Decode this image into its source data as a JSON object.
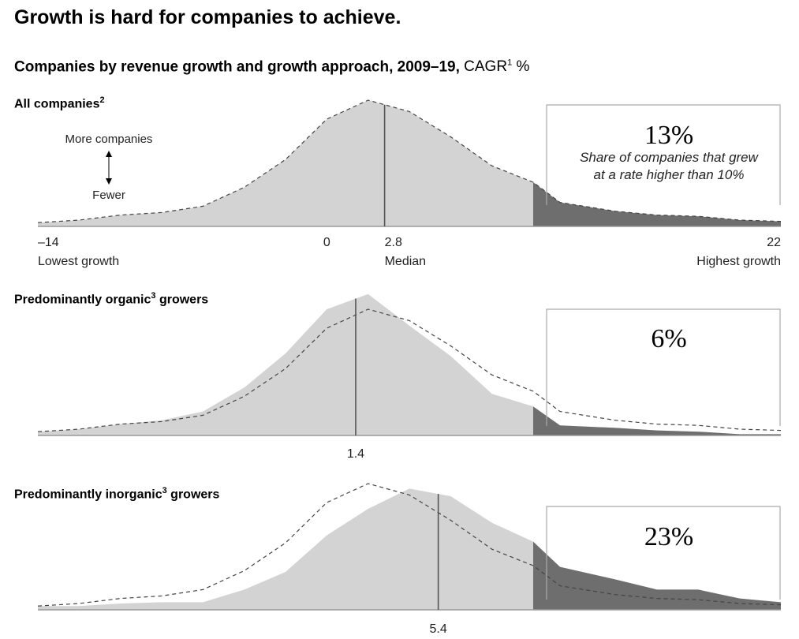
{
  "title": "Growth is hard for companies to achieve.",
  "subtitle": {
    "main": "Companies by revenue growth and growth approach, 2009–19,",
    "unit_base": "CAGR",
    "unit_sup": "1",
    "unit_tail": " %"
  },
  "colors": {
    "fill": "#d3d3d3",
    "tail_fill": "#6e6e6e",
    "dashed": "#444444",
    "median": "#555555",
    "baseline": "#999999",
    "callout_border": "#aaaaaa"
  },
  "scale_labels": {
    "more": "More companies",
    "fewer": "Fewer"
  },
  "axis_labels": {
    "left_value": "–14",
    "left_text": "Lowest growth",
    "zero": "0",
    "right_value": "22",
    "right_text": "Highest growth",
    "median_text": "Median"
  },
  "panels": [
    {
      "label": "All companies",
      "label_sup": "2",
      "median_label": "2.8",
      "callout_value": "13%",
      "callout_note_line1": "Share of companies that grew",
      "callout_note_line2": "at a rate higher than 10%"
    },
    {
      "label": "Predominantly organic",
      "label_sup": "3",
      "label_tail": " growers",
      "median_label": "1.4",
      "callout_value": "6%"
    },
    {
      "label": "Predominantly inorganic",
      "label_sup": "3",
      "label_tail": " growers",
      "median_label": "5.4",
      "callout_value": "23%"
    }
  ],
  "chart_data": {
    "type": "area",
    "xlabel": "CAGR %",
    "xlim": [
      -14,
      22
    ],
    "x_ticks": [
      -14,
      0,
      2.8,
      22
    ],
    "threshold": 10,
    "x": [
      -14,
      -12,
      -10,
      -8,
      -6,
      -4,
      -2,
      0,
      2,
      4,
      6,
      8,
      10,
      11.3,
      14,
      16,
      18,
      20,
      22
    ],
    "series": [
      {
        "name": "All companies",
        "median": 2.8,
        "share_above_10_pct": 13,
        "values": [
          3,
          5,
          9,
          11,
          16,
          31,
          53,
          85,
          100,
          91,
          71,
          48,
          35,
          19,
          12,
          9,
          8,
          5,
          4
        ]
      },
      {
        "name": "Predominantly organic growers",
        "median": 1.4,
        "share_above_10_pct": 6,
        "values": [
          3,
          5,
          9,
          12,
          19,
          38,
          65,
          100,
          112,
          87,
          63,
          33,
          23,
          8,
          6,
          4,
          3,
          1,
          1
        ]
      },
      {
        "name": "Predominantly inorganic growers",
        "median": 5.4,
        "share_above_10_pct": 23,
        "values": [
          3,
          3,
          5,
          6,
          6,
          16,
          30,
          59,
          80,
          96,
          90,
          69,
          54,
          34,
          24,
          16,
          16,
          9,
          6
        ]
      }
    ]
  }
}
